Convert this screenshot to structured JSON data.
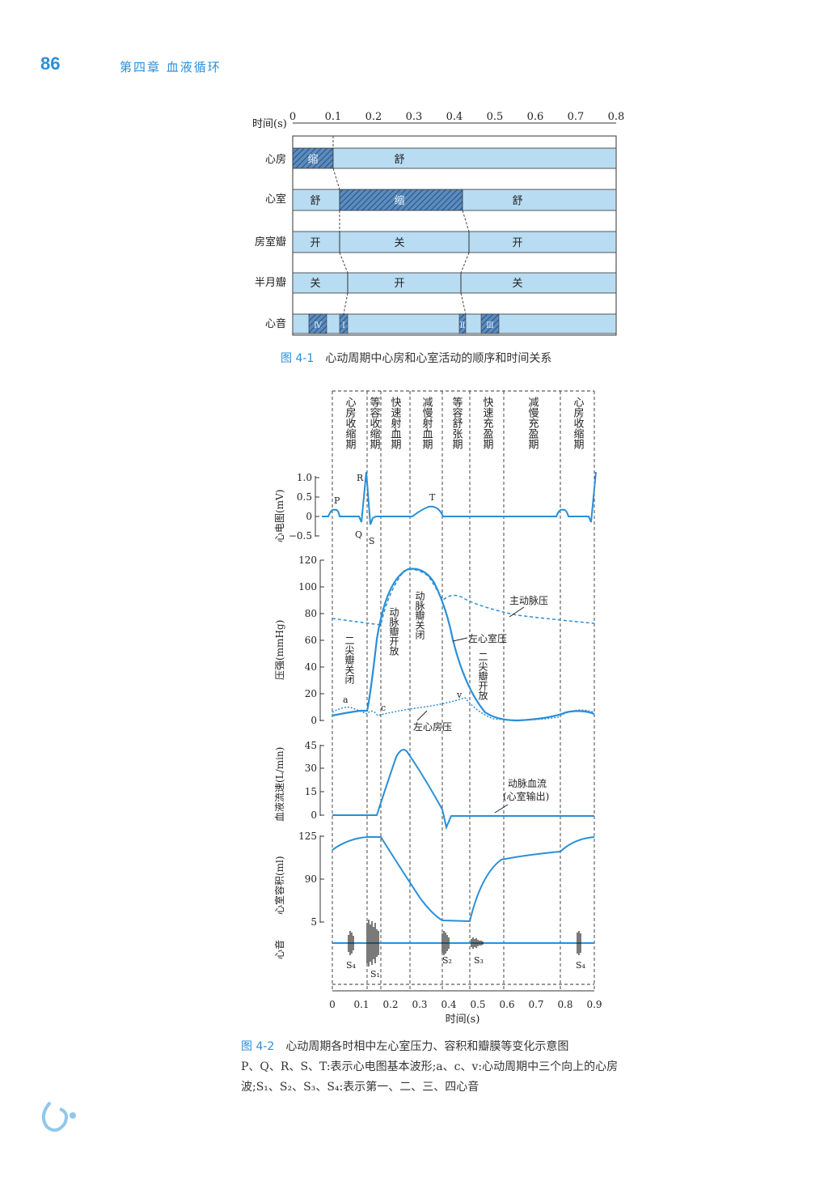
{
  "page_number": "86",
  "chapter_title": "第四章 血液循环",
  "figure1": {
    "label": "图 4-1",
    "title": "心动周期中心房和心室活动的顺序和时间关系",
    "axis_label": "时间(s)",
    "ticks": [
      "0",
      "0.1",
      "0.2",
      "0.3",
      "0.4",
      "0.5",
      "0.6",
      "0.7",
      "0.8"
    ],
    "rows": [
      {
        "name": "心房",
        "segments": [
          "缩",
          "舒"
        ]
      },
      {
        "name": "心室",
        "segments": [
          "舒",
          "缩",
          "舒"
        ]
      },
      {
        "name": "房室瓣",
        "segments": [
          "开",
          "关",
          "开"
        ]
      },
      {
        "name": "半月瓣",
        "segments": [
          "关",
          "开",
          "关"
        ]
      },
      {
        "name": "心音",
        "segments": [
          "Ⅳ",
          "Ⅰ",
          "Ⅱ",
          "Ⅲ"
        ]
      }
    ]
  },
  "figure2": {
    "label": "图 4-2",
    "title": "心动周期各时相中左心室压力、容积和瓣膜等变化示意图",
    "note": "P、Q、R、S、T:表示心电图基本波形;a、c、v:心动周期中三个向上的心房波;S₁、S₂、S₃、S₄:表示第一、二、三、四心音",
    "phases": [
      "心房收缩期",
      "等容收缩期",
      "快速射血期",
      "减慢射血期",
      "等容舒张期",
      "快速充盈期",
      "减慢充盈期",
      "心房收缩期"
    ],
    "ecg_label": "心电图(mV)",
    "ecg_ticks": [
      "1.0",
      "0.5",
      "0",
      "−0.5"
    ],
    "ecg_waves": [
      "P",
      "Q",
      "R",
      "S",
      "T"
    ],
    "pressure_label": "压强(mmHg)",
    "pressure_ticks": [
      "120",
      "100",
      "80",
      "60",
      "40",
      "20",
      "0"
    ],
    "pressure_annotations": [
      "主动脉压",
      "左心室压",
      "左心房压",
      "动脉瓣开放",
      "动脉瓣关闭",
      "二尖瓣关闭",
      "二尖瓣开放",
      "a",
      "c",
      "v"
    ],
    "flow_label": "血液流速(L/min)",
    "flow_ticks": [
      "45",
      "30",
      "15",
      "0"
    ],
    "flow_annotation_1": "动脉血流",
    "flow_annotation_2": "(心室输出)",
    "volume_label": "心室容积(ml)",
    "volume_ticks": [
      "125",
      "90",
      "5"
    ],
    "sound_label": "心音",
    "sound_marks": [
      "S₄",
      "S₁",
      "S₂",
      "S₃",
      "S₄"
    ],
    "time_label": "时间(s)",
    "time_ticks": [
      "0",
      "0.1",
      "0.2",
      "0.3",
      "0.4",
      "0.5",
      "0.6",
      "0.7",
      "0.8",
      "0.9"
    ]
  },
  "colors": {
    "accent": "#2a8fd8",
    "bar_fill": "#b8dcf2",
    "hatch": "#4a7ab0"
  }
}
